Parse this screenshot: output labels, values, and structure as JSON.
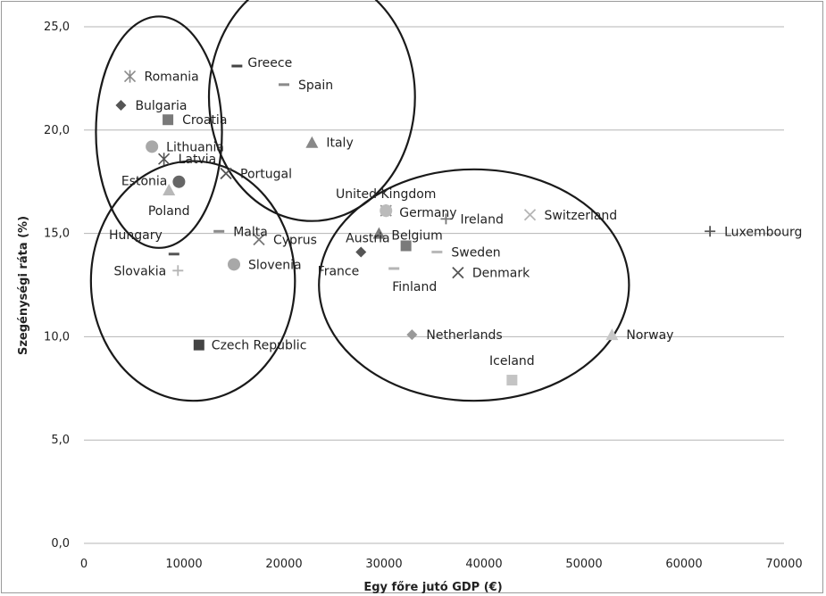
{
  "chart_data": {
    "type": "scatter",
    "title": "",
    "xlabel": "Egy főre jutó GDP (€)",
    "ylabel": "Szegénységi ráta (%)",
    "xlim": [
      0,
      70000
    ],
    "ylim": [
      0,
      25
    ],
    "x_ticks": [
      "0",
      "10000",
      "20000",
      "30000",
      "40000",
      "50000",
      "60000",
      "70000"
    ],
    "y_ticks": [
      "0,0",
      "5,0",
      "10,0",
      "15,0",
      "20,0",
      "25,0"
    ],
    "grid": "horizontal",
    "legend": "none",
    "points": [
      {
        "name": "Romania",
        "x": 4600,
        "y": 22.6,
        "marker": "asterisk",
        "color": "#8a8a8a"
      },
      {
        "name": "Greece",
        "x": 15300,
        "y": 23.1,
        "marker": "dash",
        "color": "#444444"
      },
      {
        "name": "Spain",
        "x": 20000,
        "y": 22.2,
        "marker": "dash",
        "color": "#8a8a8a"
      },
      {
        "name": "Bulgaria",
        "x": 3700,
        "y": 21.2,
        "marker": "diamond",
        "color": "#555555"
      },
      {
        "name": "Croatia",
        "x": 8400,
        "y": 20.5,
        "marker": "square",
        "color": "#7a7a7a"
      },
      {
        "name": "Lithuania",
        "x": 6800,
        "y": 19.2,
        "marker": "circle",
        "color": "#a8a8a8"
      },
      {
        "name": "Italy",
        "x": 22800,
        "y": 19.4,
        "marker": "triangle",
        "color": "#888888"
      },
      {
        "name": "Latvia",
        "x": 8000,
        "y": 18.6,
        "marker": "asterisk",
        "color": "#555555"
      },
      {
        "name": "Portugal",
        "x": 14200,
        "y": 17.9,
        "marker": "x",
        "color": "#555555"
      },
      {
        "name": "Estonia",
        "x": 9500,
        "y": 17.5,
        "marker": "circle",
        "color": "#666666"
      },
      {
        "name": "Poland",
        "x": 8500,
        "y": 17.1,
        "marker": "triangle",
        "color": "#b8b8b8"
      },
      {
        "name": "United Kingdom",
        "x": 30200,
        "y": 16.1,
        "marker": "asterisk",
        "color": "#8a8a8a"
      },
      {
        "name": "Germany",
        "x": 30200,
        "y": 16.1,
        "marker": "circle",
        "color": "#bbbbbb"
      },
      {
        "name": "Ireland",
        "x": 36200,
        "y": 15.7,
        "marker": "plus",
        "color": "#777777"
      },
      {
        "name": "Switzerland",
        "x": 44600,
        "y": 15.9,
        "marker": "x",
        "color": "#b5b5b5"
      },
      {
        "name": "Luxembourg",
        "x": 62600,
        "y": 15.1,
        "marker": "plus",
        "color": "#555555"
      },
      {
        "name": "Malta",
        "x": 13500,
        "y": 15.1,
        "marker": "dash",
        "color": "#8a8a8a"
      },
      {
        "name": "Hungary",
        "x": 9000,
        "y": 14.0,
        "marker": "dash",
        "color": "#555555"
      },
      {
        "name": "Cyprus",
        "x": 17500,
        "y": 14.7,
        "marker": "x",
        "color": "#777777"
      },
      {
        "name": "Belgium",
        "x": 29500,
        "y": 15.0,
        "marker": "triangle",
        "color": "#7a7a7a"
      },
      {
        "name": "Austria",
        "x": 32200,
        "y": 14.4,
        "marker": "square",
        "color": "#7a7a7a"
      },
      {
        "name": "Sweden",
        "x": 35300,
        "y": 14.1,
        "marker": "dash",
        "color": "#b8b8b8"
      },
      {
        "name": "France",
        "x": 27700,
        "y": 14.1,
        "marker": "diamond",
        "color": "#555555"
      },
      {
        "name": "Slovenia",
        "x": 15000,
        "y": 13.5,
        "marker": "circle",
        "color": "#a8a8a8"
      },
      {
        "name": "Slovakia",
        "x": 9400,
        "y": 13.2,
        "marker": "plus",
        "color": "#b5b5b5"
      },
      {
        "name": "Finland",
        "x": 31000,
        "y": 13.3,
        "marker": "dash",
        "color": "#b5b5b5"
      },
      {
        "name": "Denmark",
        "x": 37400,
        "y": 13.1,
        "marker": "x",
        "color": "#555555"
      },
      {
        "name": "Netherlands",
        "x": 32800,
        "y": 10.1,
        "marker": "diamond",
        "color": "#999999"
      },
      {
        "name": "Norway",
        "x": 52800,
        "y": 10.1,
        "marker": "triangle",
        "color": "#c8c8c8"
      },
      {
        "name": "Czech Republic",
        "x": 11500,
        "y": 9.6,
        "marker": "square",
        "color": "#444444"
      },
      {
        "name": "Iceland",
        "x": 42800,
        "y": 7.9,
        "marker": "square",
        "color": "#c4c4c4"
      }
    ],
    "clusters": [
      {
        "cx": 7500,
        "cy": 19.9,
        "rx": 6300,
        "ry": 5.6
      },
      {
        "cx": 22800,
        "cy": 21.6,
        "rx": 10300,
        "ry": 6.0
      },
      {
        "cx": 10900,
        "cy": 12.7,
        "rx": 10200,
        "ry": 5.8
      },
      {
        "cx": 39000,
        "cy": 12.5,
        "rx": 15500,
        "ry": 5.6
      }
    ]
  }
}
